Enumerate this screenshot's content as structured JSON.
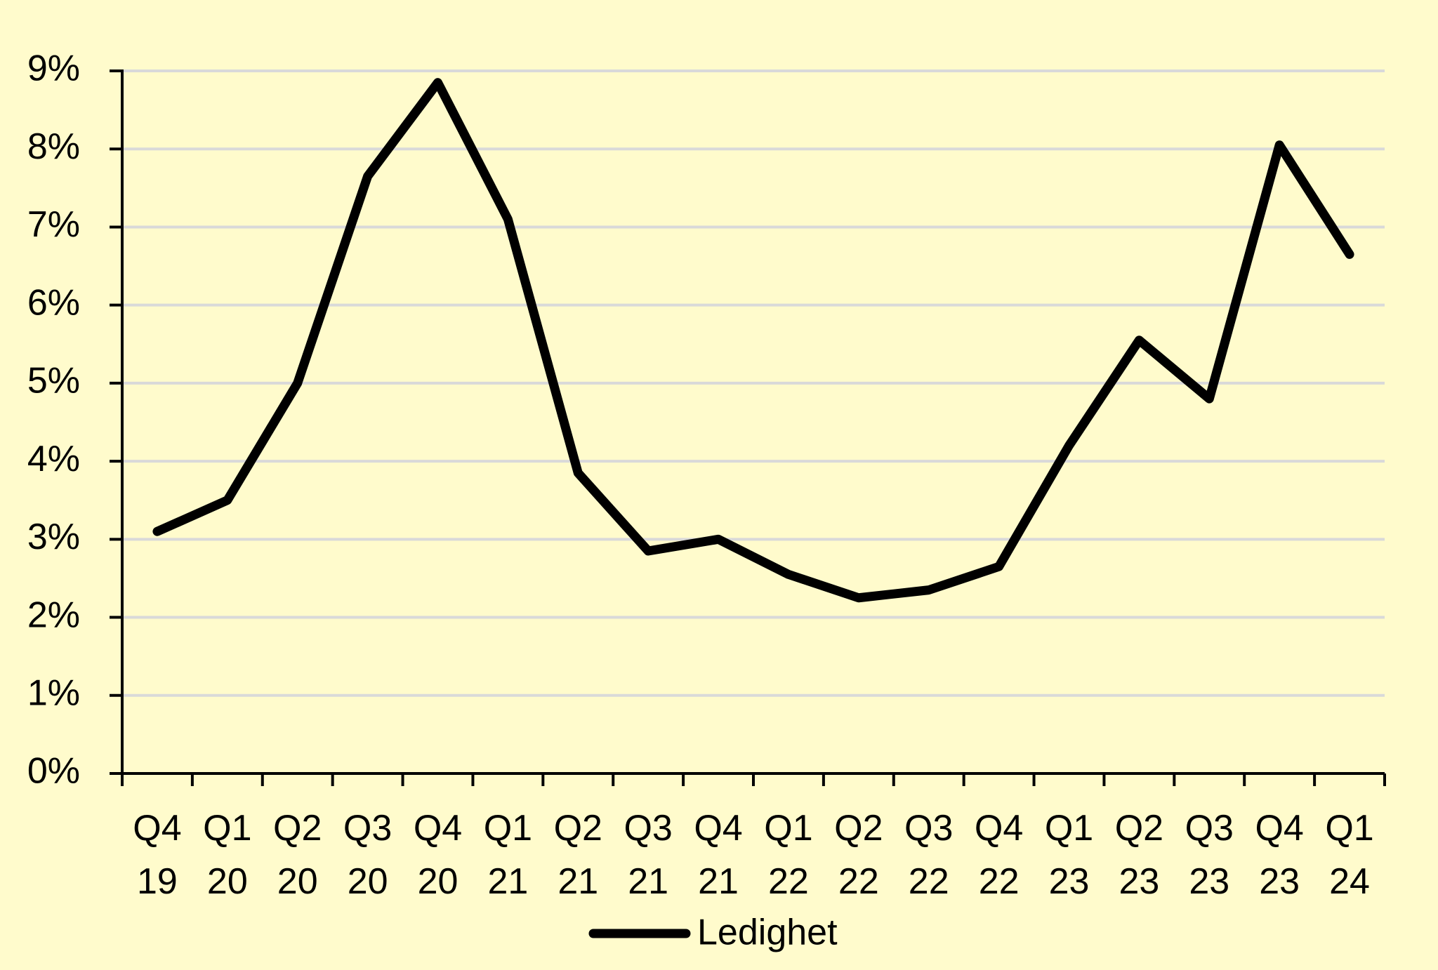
{
  "chart_data": {
    "type": "line",
    "categories": [
      "Q4\n19",
      "Q1\n20",
      "Q2\n20",
      "Q3\n20",
      "Q4\n20",
      "Q1\n21",
      "Q2\n21",
      "Q3\n21",
      "Q4\n21",
      "Q1\n22",
      "Q2\n22",
      "Q3\n22",
      "Q4\n22",
      "Q1\n23",
      "Q2\n23",
      "Q3\n23",
      "Q4\n23",
      "Q1\n24"
    ],
    "series": [
      {
        "name": "Ledighet",
        "color": "#000000",
        "values": [
          3.1,
          3.5,
          5.0,
          7.65,
          8.85,
          7.1,
          3.85,
          2.85,
          3.0,
          2.55,
          2.25,
          2.35,
          2.65,
          4.2,
          5.55,
          4.8,
          8.05,
          6.65
        ]
      }
    ],
    "ylim": [
      0,
      9
    ],
    "yticks": [
      {
        "value": 0,
        "label": "0%"
      },
      {
        "value": 1,
        "label": "1%"
      },
      {
        "value": 2,
        "label": "2%"
      },
      {
        "value": 3,
        "label": "3%"
      },
      {
        "value": 4,
        "label": "4%"
      },
      {
        "value": 5,
        "label": "5%"
      },
      {
        "value": 6,
        "label": "6%"
      },
      {
        "value": 7,
        "label": "7%"
      },
      {
        "value": 8,
        "label": "8%"
      },
      {
        "value": 9,
        "label": "9%"
      }
    ],
    "grid": true,
    "legend": "bottom"
  }
}
